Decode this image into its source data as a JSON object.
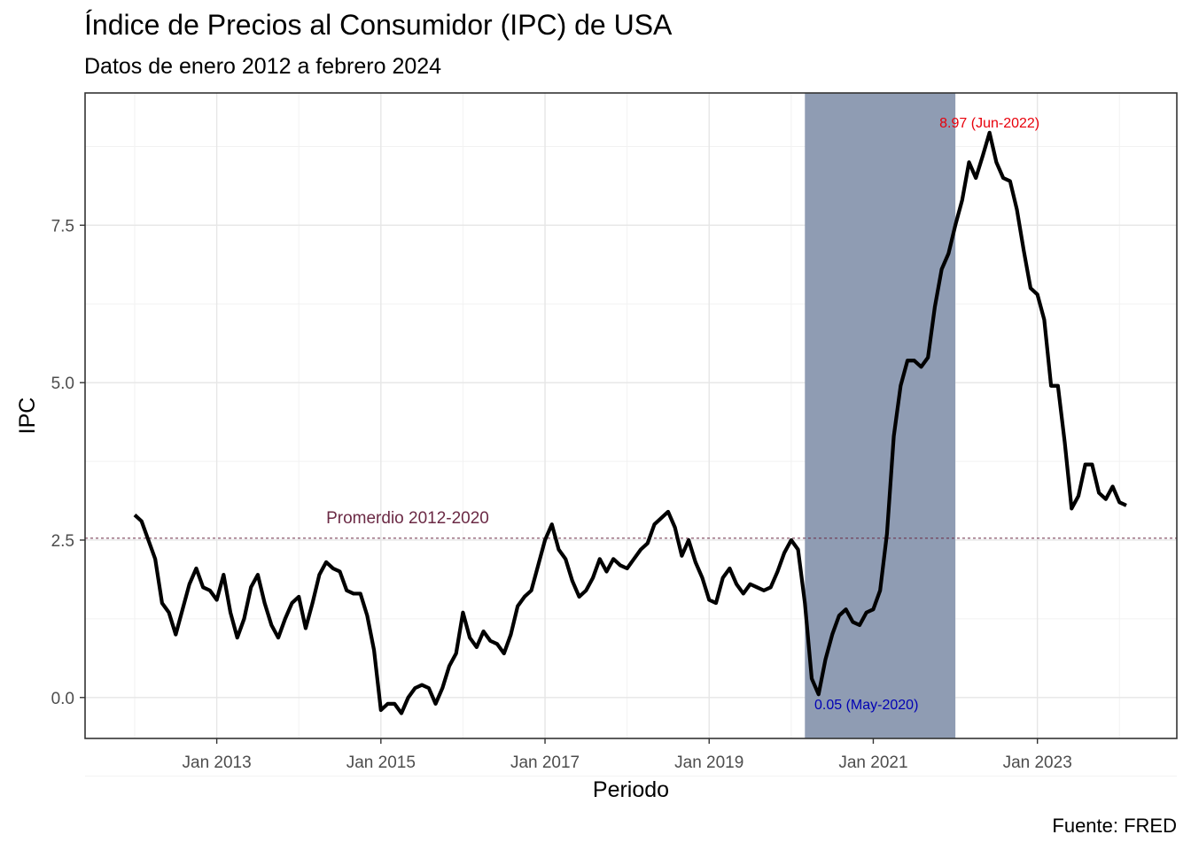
{
  "chart_data": {
    "type": "line",
    "title": "Índice de Precios al Consumidor (IPC) de USA",
    "subtitle": "Datos de enero 2012 a febrero 2024",
    "caption": "Fuente: FRED",
    "xlabel": "Periodo",
    "ylabel": "IPC",
    "x_start": "2012-01",
    "x_end": "2024-02",
    "ylim": [
      -0.65,
      9.6
    ],
    "grid": true,
    "x_ticks": [
      {
        "date": "2013-01",
        "label": "Jan 2013"
      },
      {
        "date": "2015-01",
        "label": "Jan 2015"
      },
      {
        "date": "2017-01",
        "label": "Jan 2017"
      },
      {
        "date": "2019-01",
        "label": "Jan 2019"
      },
      {
        "date": "2021-01",
        "label": "Jan 2021"
      },
      {
        "date": "2023-01",
        "label": "Jan 2023"
      }
    ],
    "y_ticks": [
      {
        "value": 0,
        "label": "0.0"
      },
      {
        "value": 2.5,
        "label": "2.5"
      },
      {
        "value": 5,
        "label": "5.0"
      },
      {
        "value": 7.5,
        "label": "7.5"
      }
    ],
    "shaded_region": {
      "start": "2020-03",
      "end": "2021-12",
      "color": "#8f9cb3"
    },
    "reference_line": {
      "value": 2.53,
      "label": "Promerdio 2012-2020",
      "color": "#6b2a45"
    },
    "annotations": [
      {
        "text": "8.97 (Jun-2022)",
        "x": "2022-06",
        "y": 8.97,
        "color": "#e8000b",
        "position": "above"
      },
      {
        "text": "0.05 (May-2020)",
        "x": "2020-05",
        "y": 0.05,
        "color": "#0000b4",
        "position": "below"
      }
    ],
    "series": [
      {
        "color": "#000000",
        "x": [
          "2012-01",
          "2012-02",
          "2012-03",
          "2012-04",
          "2012-05",
          "2012-06",
          "2012-07",
          "2012-08",
          "2012-09",
          "2012-10",
          "2012-11",
          "2012-12",
          "2013-01",
          "2013-02",
          "2013-03",
          "2013-04",
          "2013-05",
          "2013-06",
          "2013-07",
          "2013-08",
          "2013-09",
          "2013-10",
          "2013-11",
          "2013-12",
          "2014-01",
          "2014-02",
          "2014-03",
          "2014-04",
          "2014-05",
          "2014-06",
          "2014-07",
          "2014-08",
          "2014-09",
          "2014-10",
          "2014-11",
          "2014-12",
          "2015-01",
          "2015-02",
          "2015-03",
          "2015-04",
          "2015-05",
          "2015-06",
          "2015-07",
          "2015-08",
          "2015-09",
          "2015-10",
          "2015-11",
          "2015-12",
          "2016-01",
          "2016-02",
          "2016-03",
          "2016-04",
          "2016-05",
          "2016-06",
          "2016-07",
          "2016-08",
          "2016-09",
          "2016-10",
          "2016-11",
          "2016-12",
          "2017-01",
          "2017-02",
          "2017-03",
          "2017-04",
          "2017-05",
          "2017-06",
          "2017-07",
          "2017-08",
          "2017-09",
          "2017-10",
          "2017-11",
          "2017-12",
          "2018-01",
          "2018-02",
          "2018-03",
          "2018-04",
          "2018-05",
          "2018-06",
          "2018-07",
          "2018-08",
          "2018-09",
          "2018-10",
          "2018-11",
          "2018-12",
          "2019-01",
          "2019-02",
          "2019-03",
          "2019-04",
          "2019-05",
          "2019-06",
          "2019-07",
          "2019-08",
          "2019-09",
          "2019-10",
          "2019-11",
          "2019-12",
          "2020-01",
          "2020-02",
          "2020-03",
          "2020-04",
          "2020-05",
          "2020-06",
          "2020-07",
          "2020-08",
          "2020-09",
          "2020-10",
          "2020-11",
          "2020-12",
          "2021-01",
          "2021-02",
          "2021-03",
          "2021-04",
          "2021-05",
          "2021-06",
          "2021-07",
          "2021-08",
          "2021-09",
          "2021-10",
          "2021-11",
          "2021-12",
          "2022-01",
          "2022-02",
          "2022-03",
          "2022-04",
          "2022-05",
          "2022-06",
          "2022-07",
          "2022-08",
          "2022-09",
          "2022-10",
          "2022-11",
          "2022-12",
          "2023-01",
          "2023-02",
          "2023-03",
          "2023-04",
          "2023-05",
          "2023-06",
          "2023-07",
          "2023-08",
          "2023-09",
          "2023-10",
          "2023-11",
          "2023-12",
          "2024-01",
          "2024-02"
        ],
        "values": [
          2.9,
          2.8,
          2.5,
          2.2,
          1.5,
          1.35,
          1.0,
          1.4,
          1.8,
          2.05,
          1.75,
          1.7,
          1.55,
          1.95,
          1.35,
          0.95,
          1.25,
          1.75,
          1.95,
          1.5,
          1.15,
          0.95,
          1.25,
          1.5,
          1.6,
          1.1,
          1.5,
          1.95,
          2.15,
          2.05,
          2.0,
          1.7,
          1.65,
          1.65,
          1.3,
          0.75,
          -0.2,
          -0.1,
          -0.1,
          -0.25,
          0.0,
          0.15,
          0.2,
          0.15,
          -0.1,
          0.15,
          0.5,
          0.7,
          1.35,
          0.95,
          0.8,
          1.05,
          0.9,
          0.85,
          0.7,
          1.0,
          1.45,
          1.6,
          1.7,
          2.1,
          2.5,
          2.75,
          2.35,
          2.2,
          1.85,
          1.6,
          1.7,
          1.9,
          2.2,
          2.0,
          2.2,
          2.1,
          2.05,
          2.2,
          2.35,
          2.45,
          2.75,
          2.85,
          2.95,
          2.7,
          2.25,
          2.5,
          2.15,
          1.9,
          1.55,
          1.5,
          1.9,
          2.05,
          1.8,
          1.65,
          1.8,
          1.75,
          1.7,
          1.75,
          2.0,
          2.3,
          2.5,
          2.35,
          1.5,
          0.3,
          0.05,
          0.6,
          1.0,
          1.3,
          1.4,
          1.2,
          1.15,
          1.35,
          1.4,
          1.7,
          2.6,
          4.15,
          4.95,
          5.35,
          5.35,
          5.25,
          5.4,
          6.2,
          6.8,
          7.05,
          7.5,
          7.9,
          8.5,
          8.25,
          8.6,
          8.97,
          8.5,
          8.25,
          8.2,
          7.75,
          7.1,
          6.5,
          6.4,
          6.0,
          4.95,
          4.95,
          4.05,
          3.0,
          3.2,
          3.7,
          3.7,
          3.25,
          3.15,
          3.35,
          3.1,
          3.05
        ]
      }
    ]
  }
}
